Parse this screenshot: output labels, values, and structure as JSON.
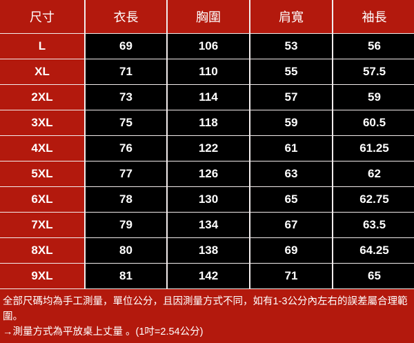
{
  "headers": [
    "尺寸",
    "衣長",
    "胸圍",
    "肩寬",
    "袖長"
  ],
  "rows": [
    [
      "L",
      "69",
      "106",
      "53",
      "56"
    ],
    [
      "XL",
      "71",
      "110",
      "55",
      "57.5"
    ],
    [
      "2XL",
      "73",
      "114",
      "57",
      "59"
    ],
    [
      "3XL",
      "75",
      "118",
      "59",
      "60.5"
    ],
    [
      "4XL",
      "76",
      "122",
      "61",
      "61.25"
    ],
    [
      "5XL",
      "77",
      "126",
      "63",
      "62"
    ],
    [
      "6XL",
      "78",
      "130",
      "65",
      "62.75"
    ],
    [
      "7XL",
      "79",
      "134",
      "67",
      "63.5"
    ],
    [
      "8XL",
      "80",
      "138",
      "69",
      "64.25"
    ],
    [
      "9XL",
      "81",
      "142",
      "71",
      "65"
    ]
  ],
  "notes": {
    "line1": "全部尺碼均為手工測量，單位公分，且因測量方式不同，如有1-3公分內左右的誤差屬合理範圍。",
    "line2": "→測量方式為平放桌上丈量 。(1吋=2.54公分)"
  },
  "colors": {
    "header_bg": "#b3190d",
    "value_bg": "#000000",
    "grid_line": "#f4eeee",
    "text": "#ffffff"
  }
}
